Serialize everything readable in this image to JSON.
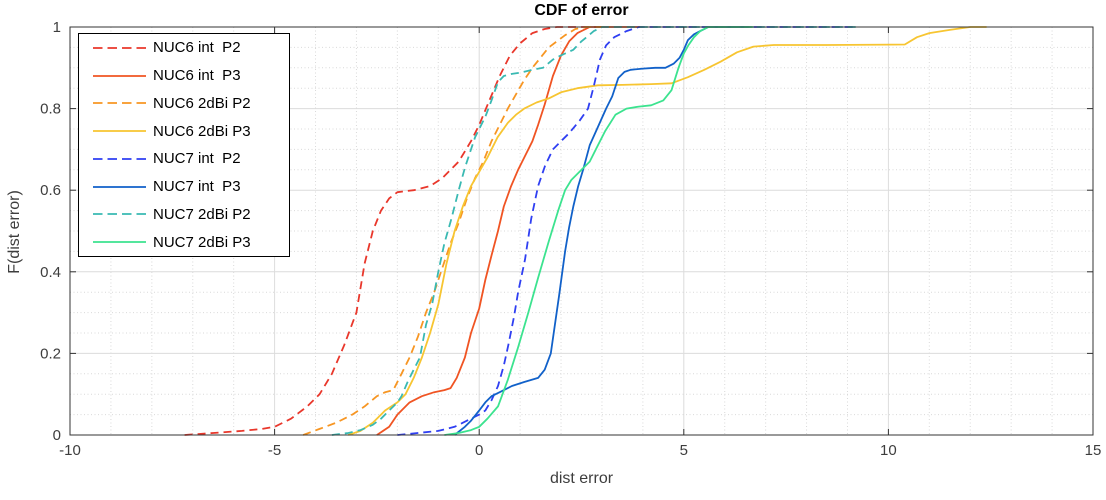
{
  "chart_data": {
    "type": "line",
    "title": "CDF of error",
    "xlabel": "dist error",
    "ylabel": "F(dist error)",
    "xlim": [
      -10,
      15
    ],
    "ylim": [
      0,
      1
    ],
    "xticks": [
      -10,
      -5,
      0,
      5,
      10,
      15
    ],
    "xtick_labels": [
      "-10",
      "-5",
      "0",
      "5",
      "10",
      "15"
    ],
    "yticks": [
      0,
      0.2,
      0.4,
      0.6,
      0.8,
      1
    ],
    "ytick_labels": [
      "0",
      "0.2",
      "0.4",
      "0.6",
      "0.8",
      "1"
    ],
    "grid": {
      "major": true,
      "minor": true,
      "minor_x_step": 1,
      "minor_y_step": 0.05
    },
    "legend_position": "northwest",
    "series": [
      {
        "name": "NUC6 int  P2",
        "color": "#e9372b",
        "dash": true,
        "points": [
          [
            -7.2,
            0
          ],
          [
            -6.5,
            0.005
          ],
          [
            -5.8,
            0.01
          ],
          [
            -5.3,
            0.015
          ],
          [
            -5.0,
            0.02
          ],
          [
            -4.6,
            0.04
          ],
          [
            -4.2,
            0.07
          ],
          [
            -3.9,
            0.1
          ],
          [
            -3.6,
            0.15
          ],
          [
            -3.3,
            0.22
          ],
          [
            -3.0,
            0.3
          ],
          [
            -2.8,
            0.42
          ],
          [
            -2.6,
            0.5
          ],
          [
            -2.4,
            0.55
          ],
          [
            -2.2,
            0.58
          ],
          [
            -2.0,
            0.595
          ],
          [
            -1.6,
            0.6
          ],
          [
            -1.2,
            0.61
          ],
          [
            -0.9,
            0.63
          ],
          [
            -0.5,
            0.67
          ],
          [
            -0.2,
            0.72
          ],
          [
            0,
            0.76
          ],
          [
            0.25,
            0.82
          ],
          [
            0.5,
            0.88
          ],
          [
            0.75,
            0.93
          ],
          [
            1.0,
            0.96
          ],
          [
            1.3,
            0.985
          ],
          [
            1.6,
            0.995
          ],
          [
            1.9,
            1.0
          ],
          [
            3.0,
            1.0
          ]
        ]
      },
      {
        "name": "NUC6 int  P3",
        "color": "#f05423",
        "dash": false,
        "points": [
          [
            -2.5,
            0
          ],
          [
            -2.2,
            0.02
          ],
          [
            -2.0,
            0.05
          ],
          [
            -1.7,
            0.08
          ],
          [
            -1.4,
            0.095
          ],
          [
            -1.1,
            0.105
          ],
          [
            -0.85,
            0.11
          ],
          [
            -0.7,
            0.115
          ],
          [
            -0.55,
            0.14
          ],
          [
            -0.35,
            0.19
          ],
          [
            -0.2,
            0.25
          ],
          [
            0,
            0.31
          ],
          [
            0.15,
            0.38
          ],
          [
            0.3,
            0.44
          ],
          [
            0.46,
            0.5
          ],
          [
            0.6,
            0.56
          ],
          [
            0.78,
            0.61
          ],
          [
            0.95,
            0.65
          ],
          [
            1.1,
            0.68
          ],
          [
            1.3,
            0.72
          ],
          [
            1.44,
            0.76
          ],
          [
            1.6,
            0.81
          ],
          [
            1.8,
            0.88
          ],
          [
            2.0,
            0.93
          ],
          [
            2.2,
            0.965
          ],
          [
            2.4,
            0.985
          ],
          [
            2.7,
            1.0
          ],
          [
            4.0,
            1.0
          ]
        ]
      },
      {
        "name": "NUC6 2dBi P2",
        "color": "#f79623",
        "dash": true,
        "points": [
          [
            -4.3,
            0
          ],
          [
            -3.9,
            0.015
          ],
          [
            -3.5,
            0.03
          ],
          [
            -3.1,
            0.05
          ],
          [
            -2.8,
            0.07
          ],
          [
            -2.5,
            0.095
          ],
          [
            -2.3,
            0.105
          ],
          [
            -2.1,
            0.11
          ],
          [
            -1.9,
            0.15
          ],
          [
            -1.7,
            0.19
          ],
          [
            -1.5,
            0.24
          ],
          [
            -1.3,
            0.3
          ],
          [
            -1.1,
            0.35
          ],
          [
            -0.9,
            0.41
          ],
          [
            -0.7,
            0.47
          ],
          [
            -0.5,
            0.52
          ],
          [
            -0.3,
            0.58
          ],
          [
            -0.1,
            0.63
          ],
          [
            0.1,
            0.67
          ],
          [
            0.3,
            0.72
          ],
          [
            0.5,
            0.76
          ],
          [
            0.7,
            0.8
          ],
          [
            0.9,
            0.835
          ],
          [
            1.1,
            0.87
          ],
          [
            1.3,
            0.9
          ],
          [
            1.5,
            0.925
          ],
          [
            1.7,
            0.95
          ],
          [
            1.9,
            0.965
          ],
          [
            2.1,
            0.98
          ],
          [
            2.35,
            0.995
          ],
          [
            2.6,
            1.0
          ],
          [
            3.2,
            1.0
          ]
        ]
      },
      {
        "name": "NUC6 2dBi P3",
        "color": "#f7c531",
        "dash": false,
        "points": [
          [
            -3.2,
            0
          ],
          [
            -2.9,
            0.01
          ],
          [
            -2.6,
            0.03
          ],
          [
            -2.3,
            0.06
          ],
          [
            -2.0,
            0.08
          ],
          [
            -1.8,
            0.1
          ],
          [
            -1.6,
            0.14
          ],
          [
            -1.4,
            0.19
          ],
          [
            -1.2,
            0.25
          ],
          [
            -1.0,
            0.32
          ],
          [
            -0.8,
            0.42
          ],
          [
            -0.6,
            0.5
          ],
          [
            -0.4,
            0.56
          ],
          [
            -0.2,
            0.61
          ],
          [
            0,
            0.645
          ],
          [
            0.2,
            0.68
          ],
          [
            0.45,
            0.73
          ],
          [
            0.7,
            0.765
          ],
          [
            0.9,
            0.785
          ],
          [
            1.1,
            0.8
          ],
          [
            1.4,
            0.815
          ],
          [
            1.7,
            0.825
          ],
          [
            2.0,
            0.84
          ],
          [
            2.4,
            0.85
          ],
          [
            2.9,
            0.857
          ],
          [
            3.5,
            0.858
          ],
          [
            4.2,
            0.86
          ],
          [
            4.7,
            0.862
          ],
          [
            5.1,
            0.877
          ],
          [
            5.5,
            0.895
          ],
          [
            5.9,
            0.915
          ],
          [
            6.3,
            0.938
          ],
          [
            6.7,
            0.952
          ],
          [
            7.2,
            0.956
          ],
          [
            8.5,
            0.956
          ],
          [
            10.4,
            0.957
          ],
          [
            10.7,
            0.975
          ],
          [
            11.0,
            0.985
          ],
          [
            11.5,
            0.993
          ],
          [
            12.0,
            1.0
          ],
          [
            12.4,
            1.0
          ]
        ]
      },
      {
        "name": "NUC7 int  P2",
        "color": "#2f3ff2",
        "dash": true,
        "points": [
          [
            -2.0,
            0
          ],
          [
            -1.5,
            0.005
          ],
          [
            -1.0,
            0.01
          ],
          [
            -0.6,
            0.02
          ],
          [
            -0.3,
            0.035
          ],
          [
            0,
            0.05
          ],
          [
            0.15,
            0.06
          ],
          [
            0.3,
            0.085
          ],
          [
            0.46,
            0.12
          ],
          [
            0.6,
            0.17
          ],
          [
            0.71,
            0.22
          ],
          [
            0.85,
            0.29
          ],
          [
            0.95,
            0.35
          ],
          [
            1.12,
            0.43
          ],
          [
            1.27,
            0.53
          ],
          [
            1.44,
            0.61
          ],
          [
            1.61,
            0.66
          ],
          [
            1.8,
            0.7
          ],
          [
            2.0,
            0.72
          ],
          [
            2.2,
            0.74
          ],
          [
            2.45,
            0.77
          ],
          [
            2.66,
            0.8
          ],
          [
            2.8,
            0.855
          ],
          [
            2.95,
            0.92
          ],
          [
            3.1,
            0.955
          ],
          [
            3.3,
            0.975
          ],
          [
            3.6,
            0.99
          ],
          [
            3.9,
            1.0
          ],
          [
            9.2,
            1.0
          ]
        ]
      },
      {
        "name": "NUC7 int  P3",
        "color": "#1161c9",
        "dash": false,
        "points": [
          [
            -0.6,
            0
          ],
          [
            -0.35,
            0.02
          ],
          [
            -0.2,
            0.035
          ],
          [
            0,
            0.06
          ],
          [
            0.15,
            0.08
          ],
          [
            0.3,
            0.095
          ],
          [
            0.5,
            0.105
          ],
          [
            0.8,
            0.12
          ],
          [
            1.1,
            0.13
          ],
          [
            1.44,
            0.14
          ],
          [
            1.6,
            0.16
          ],
          [
            1.75,
            0.2
          ],
          [
            1.85,
            0.27
          ],
          [
            1.95,
            0.34
          ],
          [
            2.1,
            0.45
          ],
          [
            2.2,
            0.51
          ],
          [
            2.3,
            0.56
          ],
          [
            2.42,
            0.61
          ],
          [
            2.54,
            0.65
          ],
          [
            2.7,
            0.71
          ],
          [
            2.9,
            0.755
          ],
          [
            3.1,
            0.8
          ],
          [
            3.25,
            0.83
          ],
          [
            3.4,
            0.875
          ],
          [
            3.55,
            0.89
          ],
          [
            3.7,
            0.895
          ],
          [
            4.0,
            0.898
          ],
          [
            4.3,
            0.9
          ],
          [
            4.55,
            0.9
          ],
          [
            4.75,
            0.91
          ],
          [
            4.9,
            0.925
          ],
          [
            5.0,
            0.944
          ],
          [
            5.1,
            0.968
          ],
          [
            5.25,
            0.982
          ],
          [
            5.4,
            0.99
          ],
          [
            5.6,
            1.0
          ],
          [
            6.5,
            1.0
          ]
        ]
      },
      {
        "name": "NUC7 2dBi P2",
        "color": "#39b9b2",
        "dash": true,
        "points": [
          [
            -3.6,
            0
          ],
          [
            -3.2,
            0.005
          ],
          [
            -2.9,
            0.012
          ],
          [
            -2.6,
            0.025
          ],
          [
            -2.4,
            0.04
          ],
          [
            -2.2,
            0.06
          ],
          [
            -2.0,
            0.08
          ],
          [
            -1.9,
            0.095
          ],
          [
            -1.75,
            0.13
          ],
          [
            -1.6,
            0.16
          ],
          [
            -1.45,
            0.19
          ],
          [
            -1.3,
            0.27
          ],
          [
            -1.15,
            0.32
          ],
          [
            -1.0,
            0.4
          ],
          [
            -0.85,
            0.47
          ],
          [
            -0.68,
            0.53
          ],
          [
            -0.5,
            0.6
          ],
          [
            -0.35,
            0.655
          ],
          [
            -0.2,
            0.7
          ],
          [
            -0.1,
            0.73
          ],
          [
            0,
            0.75
          ],
          [
            0.15,
            0.78
          ],
          [
            0.3,
            0.82
          ],
          [
            0.46,
            0.865
          ],
          [
            0.6,
            0.88
          ],
          [
            0.8,
            0.885
          ],
          [
            1.0,
            0.888
          ],
          [
            1.3,
            0.895
          ],
          [
            1.56,
            0.9
          ],
          [
            1.8,
            0.92
          ],
          [
            1.93,
            0.927
          ],
          [
            2.1,
            0.935
          ],
          [
            2.3,
            0.944
          ],
          [
            2.5,
            0.965
          ],
          [
            2.66,
            0.978
          ],
          [
            2.8,
            0.99
          ],
          [
            3.0,
            1.0
          ],
          [
            9.2,
            1.0
          ]
        ]
      },
      {
        "name": "NUC7 2dBi P3",
        "color": "#3ce38f",
        "dash": false,
        "points": [
          [
            -0.85,
            0
          ],
          [
            -0.5,
            0.005
          ],
          [
            -0.2,
            0.012
          ],
          [
            0,
            0.02
          ],
          [
            0.2,
            0.04
          ],
          [
            0.46,
            0.07
          ],
          [
            0.7,
            0.135
          ],
          [
            0.95,
            0.215
          ],
          [
            1.2,
            0.3
          ],
          [
            1.44,
            0.385
          ],
          [
            1.7,
            0.475
          ],
          [
            1.93,
            0.55
          ],
          [
            2.1,
            0.6
          ],
          [
            2.25,
            0.625
          ],
          [
            2.5,
            0.65
          ],
          [
            2.7,
            0.67
          ],
          [
            2.9,
            0.71
          ],
          [
            3.08,
            0.745
          ],
          [
            3.33,
            0.785
          ],
          [
            3.6,
            0.8
          ],
          [
            3.9,
            0.805
          ],
          [
            4.2,
            0.808
          ],
          [
            4.5,
            0.82
          ],
          [
            4.7,
            0.845
          ],
          [
            4.87,
            0.9
          ],
          [
            5.0,
            0.935
          ],
          [
            5.11,
            0.955
          ],
          [
            5.25,
            0.975
          ],
          [
            5.4,
            0.99
          ],
          [
            5.6,
            1.0
          ],
          [
            6.7,
            1.0
          ]
        ]
      }
    ]
  }
}
